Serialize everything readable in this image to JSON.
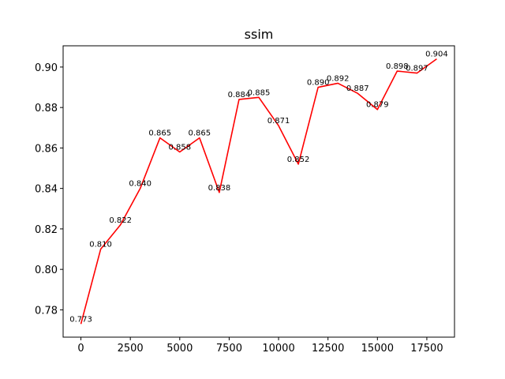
{
  "chart_data": {
    "type": "line",
    "title": "ssim",
    "xlabel": "",
    "ylabel": "",
    "xlim": [
      -900,
      18900
    ],
    "ylim": [
      0.7665,
      0.9105
    ],
    "x_ticks": [
      0,
      2500,
      5000,
      7500,
      10000,
      12500,
      15000,
      17500
    ],
    "x_tick_labels": [
      "0",
      "2500",
      "5000",
      "7500",
      "10000",
      "12500",
      "15000",
      "17500"
    ],
    "y_ticks": [
      0.78,
      0.8,
      0.82,
      0.84,
      0.86,
      0.88,
      0.9
    ],
    "y_tick_labels": [
      "0.78",
      "0.80",
      "0.82",
      "0.84",
      "0.86",
      "0.88",
      "0.90"
    ],
    "grid": false,
    "series": [
      {
        "color": "#ff0000",
        "x": [
          0,
          1000,
          2000,
          3000,
          4000,
          5000,
          6000,
          7000,
          8000,
          9000,
          10000,
          11000,
          12000,
          13000,
          14000,
          15000,
          16000,
          17000,
          18000
        ],
        "values": [
          0.773,
          0.81,
          0.822,
          0.84,
          0.865,
          0.858,
          0.865,
          0.838,
          0.884,
          0.885,
          0.871,
          0.852,
          0.89,
          0.892,
          0.887,
          0.879,
          0.898,
          0.897,
          0.904
        ],
        "labels": [
          "0.773",
          "0.810",
          "0.822",
          "0.840",
          "0.865",
          "0.858",
          "0.865",
          "0.838",
          "0.884",
          "0.885",
          "0.871",
          "0.852",
          "0.890",
          "0.892",
          "0.887",
          "0.879",
          "0.898",
          "0.897",
          "0.904"
        ]
      }
    ]
  }
}
